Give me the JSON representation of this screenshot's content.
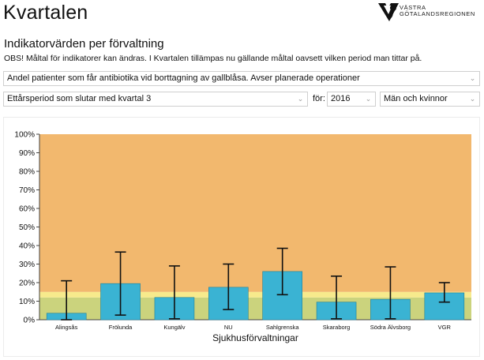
{
  "header": {
    "title": "Kvartalen",
    "logo_text": "VÄSTRA\nGÖTALANDSREGIONEN",
    "logo_icon": "vgr-logo-icon"
  },
  "page": {
    "subtitle": "Indikatorvärden per förvaltning",
    "note": "OBS! Måltal för indikatorer kan ändras. I Kvartalen tillämpas nu gällande måltal oavsett vilken period man tittar på."
  },
  "filters": {
    "indicator": "Andel patienter som får antibiotika vid borttagning av gallblåsa. Avser planerade operationer",
    "period": "Ettårsperiod som slutar med kvartal 3",
    "for_label": "för:",
    "year": "2016",
    "sex": "Män och kvinnor"
  },
  "colors": {
    "zone_bad": "#f2b86e",
    "zone_mid": "#f7ea8c",
    "zone_good": "#cbd37d",
    "bar": "#3ab3d3",
    "bar_stroke": "#1f7f9a",
    "error_bar": "#111111"
  },
  "chart_data": {
    "type": "bar",
    "title": "",
    "xlabel": "Sjukhusförvaltningar",
    "ylabel": "",
    "ylim": [
      0,
      100
    ],
    "yticks": [
      "0%",
      "10%",
      "20%",
      "30%",
      "40%",
      "50%",
      "60%",
      "70%",
      "80%",
      "90%",
      "100%"
    ],
    "categories": [
      "Alingsås",
      "Frölunda",
      "Kungälv",
      "NU",
      "Sahlgrenska",
      "Skaraborg",
      "Södra Älvsborg",
      "VGR"
    ],
    "values": [
      3.5,
      19.5,
      12,
      17.5,
      26,
      9.5,
      11,
      14.5
    ],
    "error_low": [
      0,
      2.5,
      0.5,
      5.5,
      13.5,
      0.5,
      0.5,
      9.5
    ],
    "error_high": [
      21,
      36.5,
      29,
      30,
      38.5,
      23.5,
      28.5,
      20
    ],
    "target_zones": [
      {
        "from": 0,
        "to": 12
      },
      {
        "from": 12,
        "to": 15
      },
      {
        "from": 15,
        "to": 100
      }
    ],
    "grid": false
  }
}
